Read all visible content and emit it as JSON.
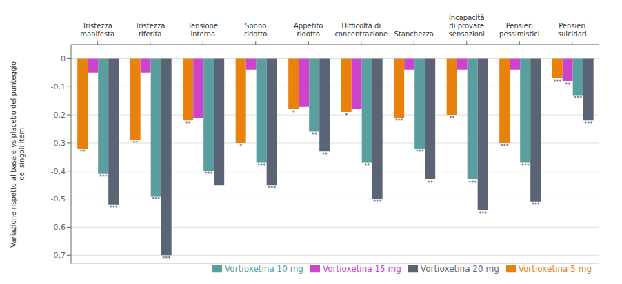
{
  "chart_data": {
    "type": "bar",
    "categories": [
      "Tristezza\nmanifesta",
      "Tristezza\nriferita",
      "Tensione\ninterna",
      "Sonno\nridotto",
      "Appetito\nridotto",
      "Difficoltà di\nconcentrazione",
      "Stanchezza",
      "Incapacità\ndi provare\nsensazioni",
      "Pensieri\npessimistici",
      "Pensieri\nsuicidari"
    ],
    "series": [
      {
        "name": "Vortioxetina 5 mg",
        "color": "#E8820C",
        "values": [
          -0.32,
          -0.29,
          -0.22,
          -0.3,
          -0.18,
          -0.19,
          -0.21,
          -0.2,
          -0.3,
          -0.07
        ],
        "annotations": [
          "**",
          "**",
          "**",
          "*",
          "*",
          "*",
          "***",
          "**",
          "***",
          "***"
        ]
      },
      {
        "name": "Vortioxetina 15 mg",
        "color": "#CC44CC",
        "values": [
          -0.05,
          -0.05,
          -0.21,
          -0.04,
          -0.17,
          -0.18,
          -0.04,
          -0.04,
          -0.04,
          -0.08
        ],
        "annotations": [
          null,
          null,
          null,
          null,
          null,
          null,
          null,
          null,
          null,
          "**"
        ]
      },
      {
        "name": "Vortioxetina 10 mg",
        "color": "#5B9EA0",
        "values": [
          -0.41,
          -0.49,
          -0.4,
          -0.37,
          -0.26,
          -0.37,
          -0.32,
          -0.43,
          -0.37,
          -0.13
        ],
        "annotations": [
          "***",
          "***",
          "***",
          "***",
          "**",
          "**",
          "***",
          "***",
          "***",
          "***"
        ]
      },
      {
        "name": "Vortioxetina 20 mg",
        "color": "#5A6475",
        "values": [
          -0.52,
          -0.7,
          -0.45,
          -0.45,
          -0.33,
          -0.5,
          -0.43,
          -0.54,
          -0.51,
          -0.22
        ],
        "annotations": [
          "***",
          "***",
          null,
          "***",
          "**",
          "***",
          "**",
          "***",
          "***",
          "***"
        ]
      }
    ],
    "ylabel": "Variazione rispetto al basale vs placebo del punteggio\ndei singoli item",
    "ylim": [
      -0.73,
      0.05
    ],
    "yticks": [
      0,
      {
        "value": -0.1,
        "label": "-0,1"
      },
      {
        "value": -0.2,
        "label": "-0,2"
      },
      {
        "value": -0.3,
        "label": "-0,3"
      },
      {
        "value": -0.4,
        "label": "-0,4"
      },
      {
        "value": -0.5,
        "label": "-0,5"
      },
      {
        "value": -0.6,
        "label": "-0,6"
      },
      {
        "value": -0.7,
        "label": "-0,7"
      }
    ],
    "grid": true,
    "legend": "lower right"
  }
}
